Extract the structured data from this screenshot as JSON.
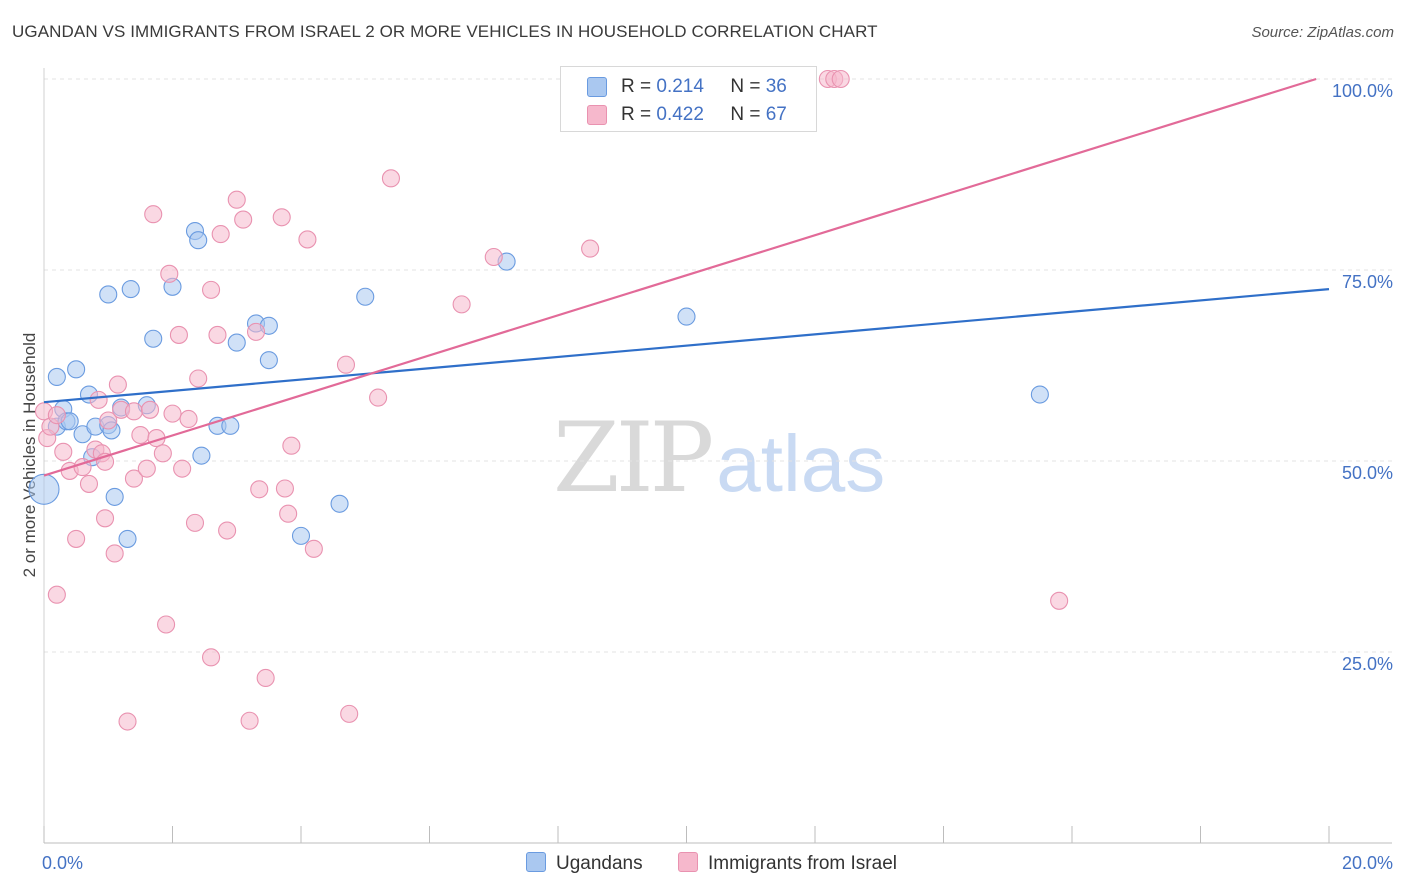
{
  "title": "UGANDAN VS IMMIGRANTS FROM ISRAEL 2 OR MORE VEHICLES IN HOUSEHOLD CORRELATION CHART",
  "source": "Source: ZipAtlas.com",
  "watermark": {
    "zip": "ZIP",
    "atlas": "atlas"
  },
  "stats_legend": [
    {
      "r_label": "R =",
      "r_value": "0.214",
      "n_label": "N =",
      "n_value": "36",
      "color": "#aac8f0"
    },
    {
      "r_label": "R =",
      "r_value": "0.422",
      "n_label": "N =",
      "n_value": "67",
      "color": "#f6b8cc"
    }
  ],
  "bottom_legend": [
    {
      "label": "Ugandans",
      "color": "#aac8f0"
    },
    {
      "label": "Immigrants from Israel",
      "color": "#f6b8cc"
    }
  ],
  "chart_data": {
    "type": "scatter",
    "ylabel": "2 or more Vehicles in Household",
    "xlim": [
      0,
      20
    ],
    "ylim": [
      0,
      100
    ],
    "x_ticks": [
      {
        "value": 0,
        "label": "0.0%"
      },
      {
        "value": 20,
        "label": "20.0%"
      }
    ],
    "y_ticks": [
      {
        "value": 25,
        "label": "25.0%"
      },
      {
        "value": 50,
        "label": "50.0%"
      },
      {
        "value": 75,
        "label": "75.0%"
      },
      {
        "value": 100,
        "label": "100.0%"
      }
    ],
    "grid": true,
    "series": [
      {
        "name": "Ugandans",
        "color": "#6a9be0",
        "fill": "#aac8f0",
        "trend_color": "#2f6fc9",
        "trend": [
          [
            0,
            57.7
          ],
          [
            20,
            72.5
          ]
        ],
        "points": [
          [
            0.0,
            46.3
          ],
          [
            0.2,
            54.5
          ],
          [
            0.2,
            61.0
          ],
          [
            0.3,
            56.8
          ],
          [
            0.35,
            55.2
          ],
          [
            0.4,
            55.2
          ],
          [
            0.5,
            62.0
          ],
          [
            0.6,
            53.5
          ],
          [
            0.7,
            58.7
          ],
          [
            0.75,
            50.5
          ],
          [
            0.8,
            54.5
          ],
          [
            1.0,
            54.7
          ],
          [
            1.0,
            71.8
          ],
          [
            1.05,
            54.0
          ],
          [
            1.1,
            45.3
          ],
          [
            1.2,
            57.0
          ],
          [
            1.3,
            39.8
          ],
          [
            1.35,
            72.5
          ],
          [
            1.6,
            57.3
          ],
          [
            1.7,
            66.0
          ],
          [
            2.0,
            72.8
          ],
          [
            2.35,
            80.1
          ],
          [
            2.4,
            78.9
          ],
          [
            2.45,
            50.7
          ],
          [
            2.7,
            54.6
          ],
          [
            2.9,
            54.6
          ],
          [
            3.0,
            65.5
          ],
          [
            3.3,
            68.0
          ],
          [
            3.5,
            63.2
          ],
          [
            3.5,
            67.7
          ],
          [
            4.0,
            40.2
          ],
          [
            4.6,
            44.4
          ],
          [
            5.0,
            71.5
          ],
          [
            7.2,
            76.1
          ],
          [
            10.0,
            68.9
          ],
          [
            15.5,
            58.7
          ]
        ]
      },
      {
        "name": "Immigrants from Israel",
        "color": "#e992b0",
        "fill": "#f6b8cc",
        "trend_color": "#e26a98",
        "trend": [
          [
            0,
            48.1
          ],
          [
            19.8,
            100
          ]
        ],
        "points": [
          [
            0.0,
            56.5
          ],
          [
            0.05,
            53.0
          ],
          [
            0.1,
            54.5
          ],
          [
            0.2,
            56.0
          ],
          [
            0.2,
            32.5
          ],
          [
            0.3,
            51.2
          ],
          [
            0.4,
            48.7
          ],
          [
            0.5,
            39.8
          ],
          [
            0.6,
            49.2
          ],
          [
            0.7,
            47.0
          ],
          [
            0.8,
            51.5
          ],
          [
            0.85,
            58.0
          ],
          [
            0.9,
            51.0
          ],
          [
            0.95,
            49.9
          ],
          [
            0.95,
            42.5
          ],
          [
            1.0,
            55.3
          ],
          [
            1.1,
            37.9
          ],
          [
            1.15,
            60.0
          ],
          [
            1.2,
            56.7
          ],
          [
            1.3,
            15.9
          ],
          [
            1.4,
            47.7
          ],
          [
            1.4,
            56.5
          ],
          [
            1.5,
            53.4
          ],
          [
            1.6,
            49.0
          ],
          [
            1.65,
            56.7
          ],
          [
            1.7,
            82.3
          ],
          [
            1.75,
            53.0
          ],
          [
            1.85,
            51.0
          ],
          [
            1.9,
            28.6
          ],
          [
            1.95,
            74.5
          ],
          [
            2.0,
            56.2
          ],
          [
            2.1,
            66.5
          ],
          [
            2.15,
            49.0
          ],
          [
            2.25,
            55.5
          ],
          [
            2.35,
            41.9
          ],
          [
            2.4,
            60.8
          ],
          [
            2.6,
            72.4
          ],
          [
            2.6,
            24.3
          ],
          [
            2.7,
            66.5
          ],
          [
            2.75,
            79.7
          ],
          [
            2.85,
            40.9
          ],
          [
            3.0,
            84.2
          ],
          [
            3.1,
            81.6
          ],
          [
            3.2,
            16.0
          ],
          [
            3.3,
            66.9
          ],
          [
            3.35,
            46.3
          ],
          [
            3.45,
            21.6
          ],
          [
            3.7,
            81.9
          ],
          [
            3.75,
            46.4
          ],
          [
            3.8,
            43.1
          ],
          [
            3.85,
            52.0
          ],
          [
            4.1,
            79.0
          ],
          [
            4.2,
            38.5
          ],
          [
            4.7,
            62.6
          ],
          [
            4.75,
            16.9
          ],
          [
            5.2,
            58.3
          ],
          [
            5.4,
            87.0
          ],
          [
            6.5,
            70.5
          ],
          [
            7.0,
            76.7
          ],
          [
            8.5,
            77.8
          ],
          [
            10.5,
            100.0
          ],
          [
            10.8,
            100.0
          ],
          [
            11.2,
            100.0
          ],
          [
            12.2,
            100.0
          ],
          [
            12.3,
            100.0
          ],
          [
            12.4,
            100.0
          ],
          [
            15.8,
            31.7
          ]
        ]
      }
    ]
  }
}
